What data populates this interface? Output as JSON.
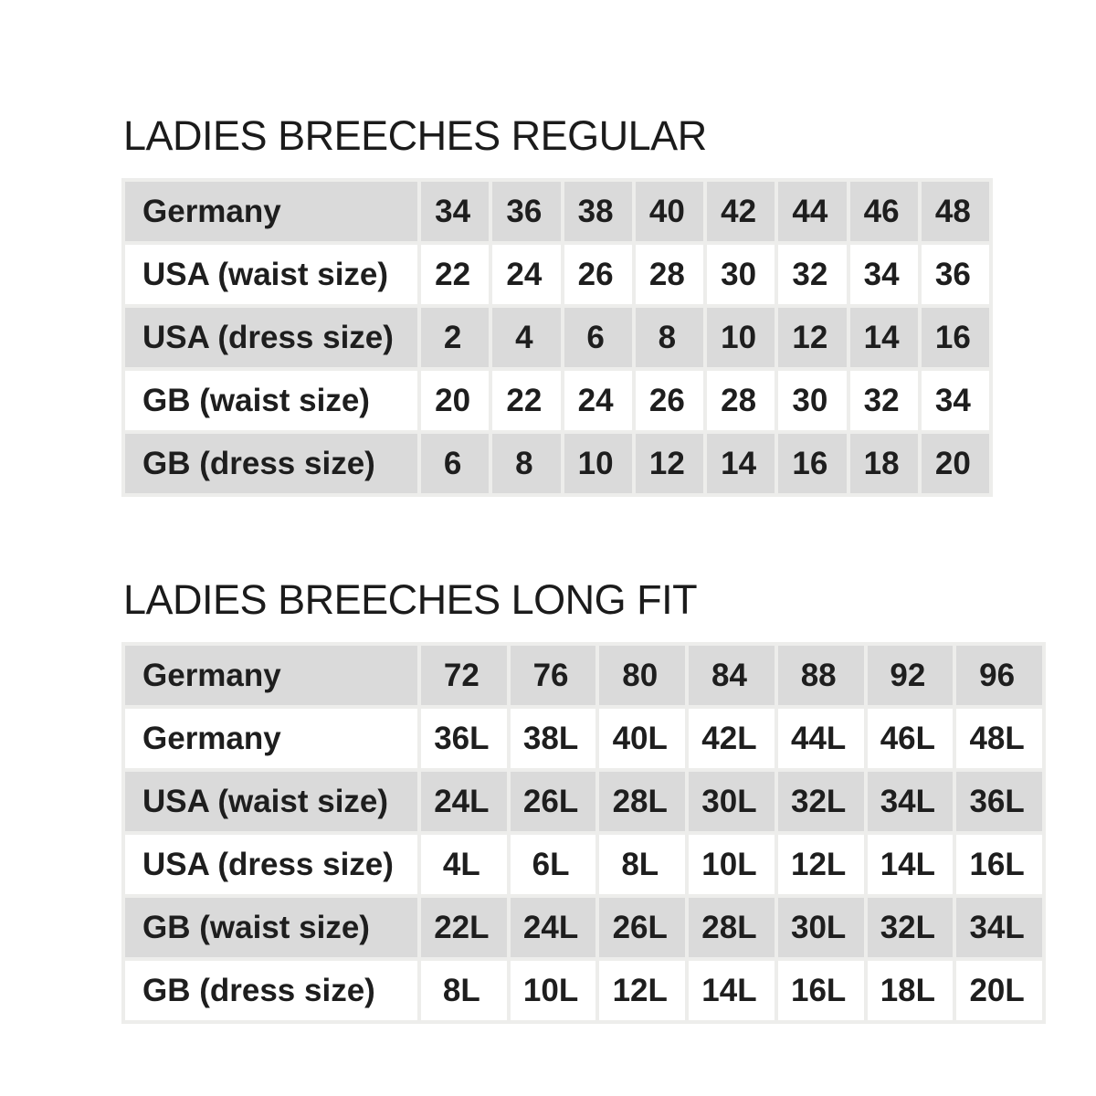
{
  "colors": {
    "page_background": "#ffffff",
    "row_gray": "#dadada",
    "row_white": "#ffffff",
    "cell_border": "#ededeb",
    "text": "#1e1e1e"
  },
  "tables": [
    {
      "title": "LADIES BREECHES REGULAR",
      "rows": [
        {
          "label": "Germany",
          "values": [
            "34",
            "36",
            "38",
            "40",
            "42",
            "44",
            "46",
            "48"
          ]
        },
        {
          "label": "USA (waist size)",
          "values": [
            "22",
            "24",
            "26",
            "28",
            "30",
            "32",
            "34",
            "36"
          ]
        },
        {
          "label": "USA (dress size)",
          "values": [
            "2",
            "4",
            "6",
            "8",
            "10",
            "12",
            "14",
            "16"
          ]
        },
        {
          "label": "GB (waist size)",
          "values": [
            "20",
            "22",
            "24",
            "26",
            "28",
            "30",
            "32",
            "34"
          ]
        },
        {
          "label": "GB (dress size)",
          "values": [
            "6",
            "8",
            "10",
            "12",
            "14",
            "16",
            "18",
            "20"
          ]
        }
      ]
    },
    {
      "title": "LADIES BREECHES LONG FIT",
      "rows": [
        {
          "label": "Germany",
          "values": [
            "72",
            "76",
            "80",
            "84",
            "88",
            "92",
            "96"
          ]
        },
        {
          "label": "Germany",
          "values": [
            "36L",
            "38L",
            "40L",
            "42L",
            "44L",
            "46L",
            "48L"
          ]
        },
        {
          "label": "USA (waist size)",
          "values": [
            "24L",
            "26L",
            "28L",
            "30L",
            "32L",
            "34L",
            "36L"
          ]
        },
        {
          "label": "USA (dress size)",
          "values": [
            "4L",
            "6L",
            "8L",
            "10L",
            "12L",
            "14L",
            "16L"
          ]
        },
        {
          "label": "GB (waist size)",
          "values": [
            "22L",
            "24L",
            "26L",
            "28L",
            "30L",
            "32L",
            "34L"
          ]
        },
        {
          "label": "GB (dress size)",
          "values": [
            "8L",
            "10L",
            "12L",
            "14L",
            "16L",
            "18L",
            "20L"
          ]
        }
      ]
    }
  ]
}
